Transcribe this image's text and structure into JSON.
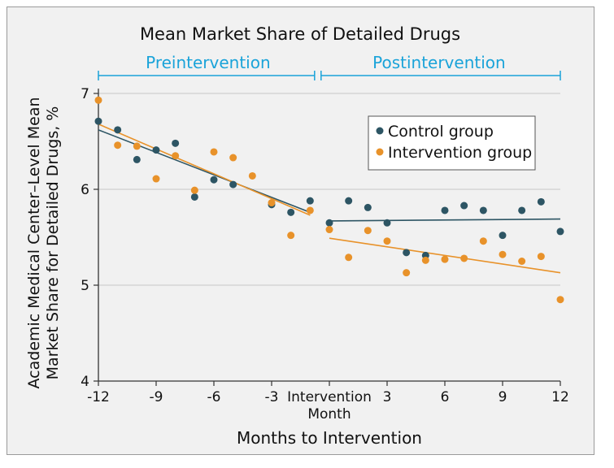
{
  "chart_data": {
    "type": "scatter",
    "title": "Mean Market Share of Detailed Drugs",
    "xlabel": "Months to Intervention",
    "ylabel": [
      "Academic Medical Center–Level Mean",
      "Market Share for Detailed Drugs, %"
    ],
    "xlim": [
      -12,
      12
    ],
    "ylim": [
      4,
      7
    ],
    "x_ticks": [
      {
        "value": -12,
        "label": "-12"
      },
      {
        "value": -9,
        "label": "-9"
      },
      {
        "value": -6,
        "label": "-6"
      },
      {
        "value": -3,
        "label": "-3"
      },
      {
        "value": 0,
        "label": "Intervention",
        "sublabel": "Month"
      },
      {
        "value": 3,
        "label": "3"
      },
      {
        "value": 6,
        "label": "6"
      },
      {
        "value": 9,
        "label": "9"
      },
      {
        "value": 12,
        "label": "12"
      }
    ],
    "y_ticks": [
      {
        "value": 4,
        "label": "4"
      },
      {
        "value": 5,
        "label": "5"
      },
      {
        "value": 6,
        "label": "6"
      },
      {
        "value": 7,
        "label": "7"
      }
    ],
    "grid": "horizontal",
    "legend_position": "top-right",
    "periods": [
      {
        "label": "Preintervention",
        "start": -12,
        "end": -0.6
      },
      {
        "label": "Postintervention",
        "start": -0.6,
        "end": 12
      }
    ],
    "series": [
      {
        "name": "Control group",
        "color": "#2d5564",
        "x": [
          -12,
          -11,
          -10,
          -9,
          -8,
          -7,
          -6,
          -5,
          -3,
          -2,
          -1,
          0,
          1,
          2,
          3,
          4,
          5,
          6,
          7,
          8,
          9,
          10,
          11,
          12
        ],
        "y": [
          6.71,
          6.62,
          6.31,
          6.41,
          6.48,
          5.92,
          6.1,
          6.05,
          5.84,
          5.76,
          5.88,
          5.65,
          5.88,
          5.81,
          5.65,
          5.34,
          5.31,
          5.78,
          5.83,
          5.78,
          5.52,
          5.78,
          5.87,
          5.56
        ],
        "trend": [
          {
            "x": [
              -12,
              -1
            ],
            "y": [
              6.62,
              5.76
            ]
          },
          {
            "x": [
              0,
              12
            ],
            "y": [
              5.67,
              5.69
            ]
          }
        ]
      },
      {
        "name": "Intervention group",
        "color": "#e8922a",
        "x": [
          -12,
          -11,
          -10,
          -9,
          -8,
          -7,
          -6,
          -5,
          -4,
          -3,
          -2,
          -1,
          0,
          1,
          2,
          3,
          4,
          5,
          6,
          7,
          8,
          9,
          10,
          11,
          12
        ],
        "y": [
          6.93,
          6.46,
          6.45,
          6.11,
          6.35,
          5.99,
          6.39,
          6.33,
          6.14,
          5.86,
          5.52,
          5.78,
          5.58,
          5.29,
          5.57,
          5.46,
          5.13,
          5.26,
          5.27,
          5.28,
          5.46,
          5.32,
          5.25,
          5.3,
          4.85
        ],
        "trend": [
          {
            "x": [
              -12,
              -1
            ],
            "y": [
              6.68,
              5.73
            ]
          },
          {
            "x": [
              0,
              12
            ],
            "y": [
              5.49,
              5.13
            ]
          }
        ]
      }
    ]
  },
  "colors": {
    "axis": "#333333",
    "grid": "#c8c8c8",
    "period_bracket": "#1aa3d9",
    "panel": "#f1f1f1",
    "plot_background": "#f1f1f1"
  }
}
